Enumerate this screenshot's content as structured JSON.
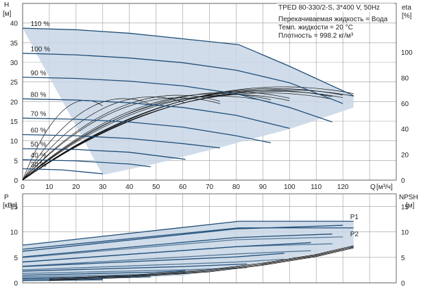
{
  "chart_data": [
    {
      "type": "line",
      "title": "TPED 80-330/2-S, 3*400 V, 50Hz",
      "info": [
        "Перекачиваемая жидкость = Вода",
        "Темп. жидкости = 20 °C",
        "Плотность = 998.2 кг/м³"
      ],
      "ylabel": "H",
      "yunit": "[м]",
      "y2label": "eta",
      "y2unit": "[%]",
      "xlabel": "Q",
      "xunit": "[м³/ч]",
      "xlim": [
        0,
        140
      ],
      "ylim": [
        0,
        45
      ],
      "y2lim": [
        0,
        138
      ],
      "xticks": [
        0,
        10,
        20,
        30,
        40,
        50,
        60,
        70,
        80,
        90,
        100,
        110,
        120
      ],
      "yticks": [
        0,
        5,
        10,
        15,
        20,
        25,
        30,
        35,
        40
      ],
      "y2ticks": [
        0,
        20,
        40,
        60,
        80,
        100
      ],
      "grid": true,
      "series": [
        {
          "name": "110 %",
          "x": [
            0,
            20,
            40,
            60,
            81,
            100,
            124
          ],
          "y": [
            38.7,
            38.3,
            37.4,
            36.0,
            34.5,
            29.0,
            21.5
          ]
        },
        {
          "name": "100 %",
          "x": [
            0,
            20,
            40,
            60,
            80,
            100,
            120
          ],
          "y": [
            32.3,
            31.9,
            31.1,
            29.9,
            28.0,
            24.8,
            19.5
          ]
        },
        {
          "name": "90 %",
          "x": [
            0,
            20,
            40,
            60,
            80,
            100,
            116
          ],
          "y": [
            26.2,
            25.9,
            25.2,
            24.0,
            22.0,
            18.5,
            14.8
          ]
        },
        {
          "name": "80 %",
          "x": [
            0,
            20,
            40,
            60,
            80,
            100
          ],
          "y": [
            20.7,
            20.4,
            19.7,
            18.5,
            16.5,
            13.2
          ]
        },
        {
          "name": "70 %",
          "x": [
            0,
            20,
            40,
            60,
            80,
            93
          ],
          "y": [
            15.8,
            15.5,
            14.8,
            13.5,
            11.3,
            9.5
          ]
        },
        {
          "name": "60 %",
          "x": [
            0,
            20,
            40,
            60,
            74
          ],
          "y": [
            11.6,
            11.3,
            10.6,
            9.3,
            8.2
          ]
        },
        {
          "name": "50 %",
          "x": [
            0,
            20,
            40,
            61
          ],
          "y": [
            8.0,
            7.8,
            7.1,
            5.3
          ]
        },
        {
          "name": "40 %",
          "x": [
            0,
            20,
            40,
            48
          ],
          "y": [
            5.2,
            4.9,
            4.1,
            3.4
          ]
        },
        {
          "name": "30 %",
          "x": [
            0,
            15,
            30
          ],
          "y": [
            2.9,
            2.6,
            1.6
          ]
        }
      ],
      "envelope": {
        "x": [
          0,
          20,
          40,
          60,
          81,
          100,
          124,
          124,
          100,
          75,
          50,
          30
        ],
        "y": [
          38.7,
          38.3,
          37.4,
          36.0,
          34.5,
          29.0,
          21.5,
          18.5,
          13.0,
          8.5,
          4.2,
          1.3
        ]
      },
      "efficiency": {
        "eta_max": 67,
        "q_opt_max": 90,
        "q_end": 124,
        "axis": "y2"
      }
    },
    {
      "type": "line",
      "ylabel": "P",
      "yunit": "[кВт]",
      "y2label": "NPSH",
      "y2unit": "[м]",
      "xlim": [
        0,
        140
      ],
      "ylim": [
        0,
        17.5
      ],
      "yticks": [
        0,
        5,
        10,
        15
      ],
      "y2ticks": [
        0,
        5,
        10,
        15
      ],
      "grid": true,
      "series": [
        {
          "name": "P1",
          "x": [
            0,
            81,
            124
          ],
          "y": [
            7.4,
            12.1,
            12.1
          ]
        },
        {
          "name": "P2",
          "x": [
            0,
            81,
            124
          ],
          "y": [
            6.6,
            10.8,
            10.8
          ]
        }
      ],
      "power_levels": [
        {
          "x": [
            0,
            80,
            120
          ],
          "y": [
            6.2,
            10.6,
            11.3
          ]
        },
        {
          "x": [
            0,
            80,
            116
          ],
          "y": [
            5.1,
            8.9,
            9.6
          ]
        },
        {
          "x": [
            0,
            80,
            108
          ],
          "y": [
            4.1,
            7.1,
            7.9
          ]
        },
        {
          "x": [
            0,
            80,
            98
          ],
          "y": [
            3.2,
            5.1,
            5.8
          ]
        },
        {
          "x": [
            0,
            60,
            84
          ],
          "y": [
            2.3,
            3.2,
            3.7
          ]
        },
        {
          "x": [
            0,
            50,
            61
          ],
          "y": [
            1.5,
            2.1,
            2.4
          ]
        },
        {
          "x": [
            0,
            40,
            48
          ],
          "y": [
            0.9,
            1.3,
            1.4
          ]
        },
        {
          "x": [
            0,
            30
          ],
          "y": [
            0.5,
            0.7
          ]
        }
      ],
      "npsh": {
        "x": [
          10,
          40,
          70,
          90,
          110,
          124
        ],
        "y": [
          0.6,
          1.2,
          2.3,
          3.6,
          5.3,
          7.0
        ]
      }
    }
  ]
}
